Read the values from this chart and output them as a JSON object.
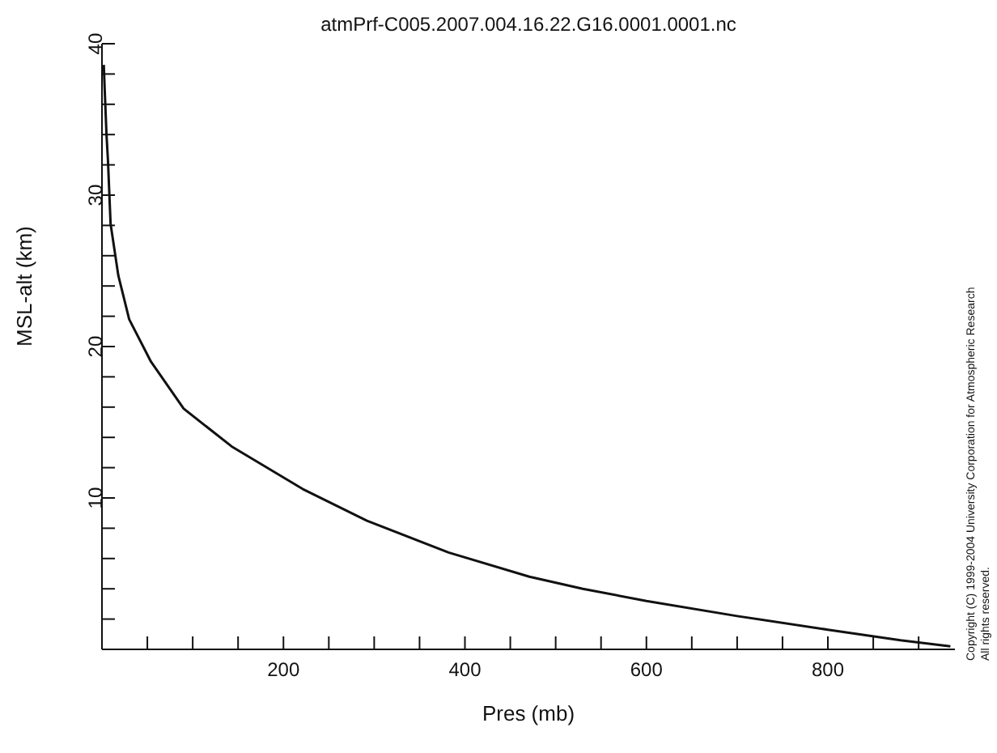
{
  "chart_data": {
    "type": "line",
    "title": "atmPrf-C005.2007.004.16.22.G16.0001.0001.nc",
    "xlabel": "Pres (mb)",
    "ylabel": "MSL-alt (km)",
    "annotations": [
      "Copyright (C) 1999-2004 University Corporation for Atmospheric Research",
      "All rights reserved."
    ],
    "series": [
      {
        "color": "#111111",
        "x": [
          2,
          3,
          5,
          6.6,
          9.5,
          18,
          30,
          54,
          90,
          143,
          221,
          292,
          382,
          471,
          530,
          600,
          700,
          800,
          880,
          935
        ],
        "values": [
          38.6,
          37,
          34,
          32.3,
          28.1,
          24.7,
          21.8,
          19.0,
          15.9,
          13.4,
          10.6,
          8.5,
          6.4,
          4.8,
          4.0,
          3.2,
          2.2,
          1.3,
          0.6,
          0.2
        ]
      }
    ],
    "xlim": [
      0,
      940
    ],
    "xticks": [
      {
        "value": 50,
        "label": null
      },
      {
        "value": 100,
        "label": null
      },
      {
        "value": 150,
        "label": null
      },
      200,
      {
        "value": 250,
        "label": null
      },
      {
        "value": 300,
        "label": null
      },
      {
        "value": 350,
        "label": null
      },
      400,
      {
        "value": 450,
        "label": null
      },
      {
        "value": 500,
        "label": null
      },
      {
        "value": 550,
        "label": null
      },
      600,
      {
        "value": 650,
        "label": null
      },
      {
        "value": 700,
        "label": null
      },
      {
        "value": 750,
        "label": null
      },
      800,
      {
        "value": 850,
        "label": null
      },
      {
        "value": 900,
        "label": null
      }
    ],
    "ylim": [
      0,
      40
    ],
    "yticks": [
      {
        "value": 2,
        "label": null
      },
      {
        "value": 4,
        "label": null
      },
      {
        "value": 6,
        "label": null
      },
      {
        "value": 8,
        "label": null
      },
      10,
      {
        "value": 12,
        "label": null
      },
      {
        "value": 14,
        "label": null
      },
      {
        "value": 16,
        "label": null
      },
      {
        "value": 18,
        "label": null
      },
      20,
      {
        "value": 22,
        "label": null
      },
      {
        "value": 24,
        "label": null
      },
      {
        "value": 26,
        "label": null
      },
      {
        "value": 28,
        "label": null
      },
      30,
      {
        "value": 32,
        "label": null
      },
      {
        "value": 34,
        "label": null
      },
      {
        "value": 36,
        "label": null
      },
      {
        "value": 38,
        "label": null
      },
      40
    ],
    "grid": false,
    "legend": false,
    "marker": "none",
    "line_style": "solid"
  }
}
